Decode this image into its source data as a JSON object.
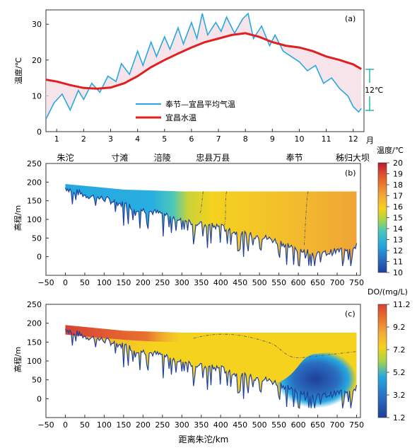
{
  "chart_data": [
    {
      "type": "line",
      "panel_label": "(a)",
      "ylabel": "温度/℃",
      "xunit": "月",
      "xlim": [
        0.6,
        12.4
      ],
      "ylim": [
        0,
        34
      ],
      "xticks": [
        "1",
        "2",
        "3",
        "4",
        "5",
        "6",
        "7",
        "8",
        "9",
        "10",
        "11",
        "12"
      ],
      "yticks": [
        "0",
        "10",
        "20",
        "30"
      ],
      "annotation": "12℃",
      "series": [
        {
          "name": "宜昌水温",
          "color": "#e02020",
          "x": [
            0.6,
            1.0,
            1.5,
            2.0,
            2.5,
            3.0,
            3.5,
            4.0,
            4.5,
            5.0,
            5.5,
            6.0,
            6.5,
            7.0,
            7.5,
            8.0,
            8.5,
            9.0,
            9.5,
            10.0,
            10.5,
            11.0,
            11.5,
            12.0,
            12.3
          ],
          "y": [
            14.5,
            14.0,
            13.0,
            12.2,
            12.0,
            12.3,
            13.5,
            15.5,
            18.0,
            20.0,
            21.8,
            23.5,
            25.0,
            26.0,
            27.0,
            27.5,
            26.5,
            25.0,
            24.0,
            23.5,
            22.5,
            21.0,
            20.0,
            18.8,
            17.5
          ]
        },
        {
          "name": "奉节—宜昌平均气温",
          "color": "#28a8e0",
          "x": [
            0.6,
            0.9,
            1.2,
            1.5,
            1.8,
            2.0,
            2.3,
            2.6,
            2.9,
            3.2,
            3.4,
            3.7,
            4.0,
            4.2,
            4.5,
            4.7,
            5.0,
            5.2,
            5.5,
            5.7,
            6.0,
            6.2,
            6.4,
            6.6,
            6.9,
            7.1,
            7.3,
            7.6,
            7.9,
            8.1,
            8.3,
            8.6,
            8.9,
            9.1,
            9.4,
            9.7,
            10.0,
            10.3,
            10.6,
            10.9,
            11.2,
            11.5,
            11.8,
            12.0,
            12.2,
            12.3
          ],
          "y": [
            3.5,
            8.0,
            10.5,
            6.0,
            11.5,
            9.0,
            13.5,
            11.0,
            15.5,
            14.0,
            19.0,
            16.0,
            22.5,
            18.5,
            25.0,
            21.0,
            26.5,
            23.0,
            29.0,
            24.5,
            30.5,
            26.0,
            33.0,
            27.0,
            30.5,
            28.0,
            32.0,
            27.5,
            31.5,
            33.0,
            26.0,
            29.5,
            24.0,
            27.0,
            22.5,
            21.0,
            19.5,
            17.0,
            18.5,
            13.5,
            15.0,
            12.0,
            10.0,
            7.0,
            5.5,
            6.5
          ]
        }
      ]
    },
    {
      "type": "heatmap",
      "panel_label": "(b)",
      "xlabel": "",
      "ylabel": "高程/m",
      "xlim": [
        -50,
        760
      ],
      "ylim": [
        -50,
        250
      ],
      "xticks": [
        "−50",
        "0",
        "50",
        "100",
        "150",
        "200",
        "250",
        "300",
        "350",
        "400",
        "450",
        "500",
        "550",
        "600",
        "650",
        "700",
        "750"
      ],
      "yticks": [
        "0",
        "50",
        "100",
        "150",
        "200",
        "250"
      ],
      "stations": [
        "朱沱",
        "寸滩",
        "涪陵",
        "忠县万县",
        "奉节",
        "秭归大坝"
      ],
      "colorbar": {
        "title": "温度/℃",
        "min": 10,
        "max": 20,
        "ticks": [
          "10",
          "11",
          "12",
          "13",
          "14",
          "15",
          "16",
          "17",
          "18",
          "19",
          "20"
        ]
      },
      "palette": [
        "#1f3f9a",
        "#2a6fc0",
        "#25a8e0",
        "#4cc8b8",
        "#a8d44a",
        "#f4d21e",
        "#f2a93a",
        "#e8712d",
        "#d94234",
        "#b51d2e"
      ],
      "surface": [
        [
          0,
          195
        ],
        [
          150,
          180
        ],
        [
          300,
          175
        ],
        [
          750,
          175
        ]
      ],
      "bed": [
        [
          0,
          185
        ],
        [
          50,
          165
        ],
        [
          100,
          155
        ],
        [
          150,
          140
        ],
        [
          200,
          125
        ],
        [
          250,
          115
        ],
        [
          300,
          100
        ],
        [
          350,
          85
        ],
        [
          400,
          80
        ],
        [
          450,
          60
        ],
        [
          500,
          55
        ],
        [
          550,
          40
        ],
        [
          600,
          20
        ],
        [
          650,
          5
        ],
        [
          700,
          15
        ],
        [
          750,
          30
        ]
      ],
      "field": [
        [
          0,
          12.5
        ],
        [
          280,
          13.0
        ],
        [
          330,
          14.5
        ],
        [
          400,
          15.3
        ],
        [
          550,
          16.0
        ],
        [
          700,
          16.6
        ],
        [
          750,
          16.8
        ]
      ]
    },
    {
      "type": "heatmap",
      "panel_label": "(c)",
      "xlabel": "距离朱沱/km",
      "ylabel": "高程/m",
      "xlim": [
        -50,
        760
      ],
      "ylim": [
        -50,
        250
      ],
      "xticks": [
        "−50",
        "0",
        "50",
        "100",
        "150",
        "200",
        "250",
        "300",
        "350",
        "400",
        "450",
        "500",
        "550",
        "600",
        "650",
        "700",
        "750"
      ],
      "yticks": [
        "0",
        "50",
        "100",
        "150",
        "200",
        "250"
      ],
      "colorbar": {
        "title": "DO/(mg/L)",
        "min": 1.2,
        "max": 11.2,
        "ticks": [
          "1.2",
          "3.2",
          "5.2",
          "7.2",
          "9.2",
          "11.2"
        ]
      },
      "palette": [
        "#1f3f9a",
        "#2a6fc0",
        "#25a8e0",
        "#a8d44a",
        "#f4d21e",
        "#f2a93a",
        "#e8712d",
        "#d94234"
      ],
      "surface": [
        [
          0,
          195
        ],
        [
          150,
          180
        ],
        [
          300,
          175
        ],
        [
          750,
          175
        ]
      ],
      "bed": [
        [
          0,
          185
        ],
        [
          50,
          165
        ],
        [
          100,
          155
        ],
        [
          150,
          140
        ],
        [
          200,
          125
        ],
        [
          250,
          115
        ],
        [
          300,
          100
        ],
        [
          350,
          85
        ],
        [
          400,
          80
        ],
        [
          450,
          60
        ],
        [
          500,
          55
        ],
        [
          550,
          40
        ],
        [
          600,
          20
        ],
        [
          650,
          5
        ],
        [
          700,
          15
        ],
        [
          750,
          30
        ]
      ]
    }
  ]
}
